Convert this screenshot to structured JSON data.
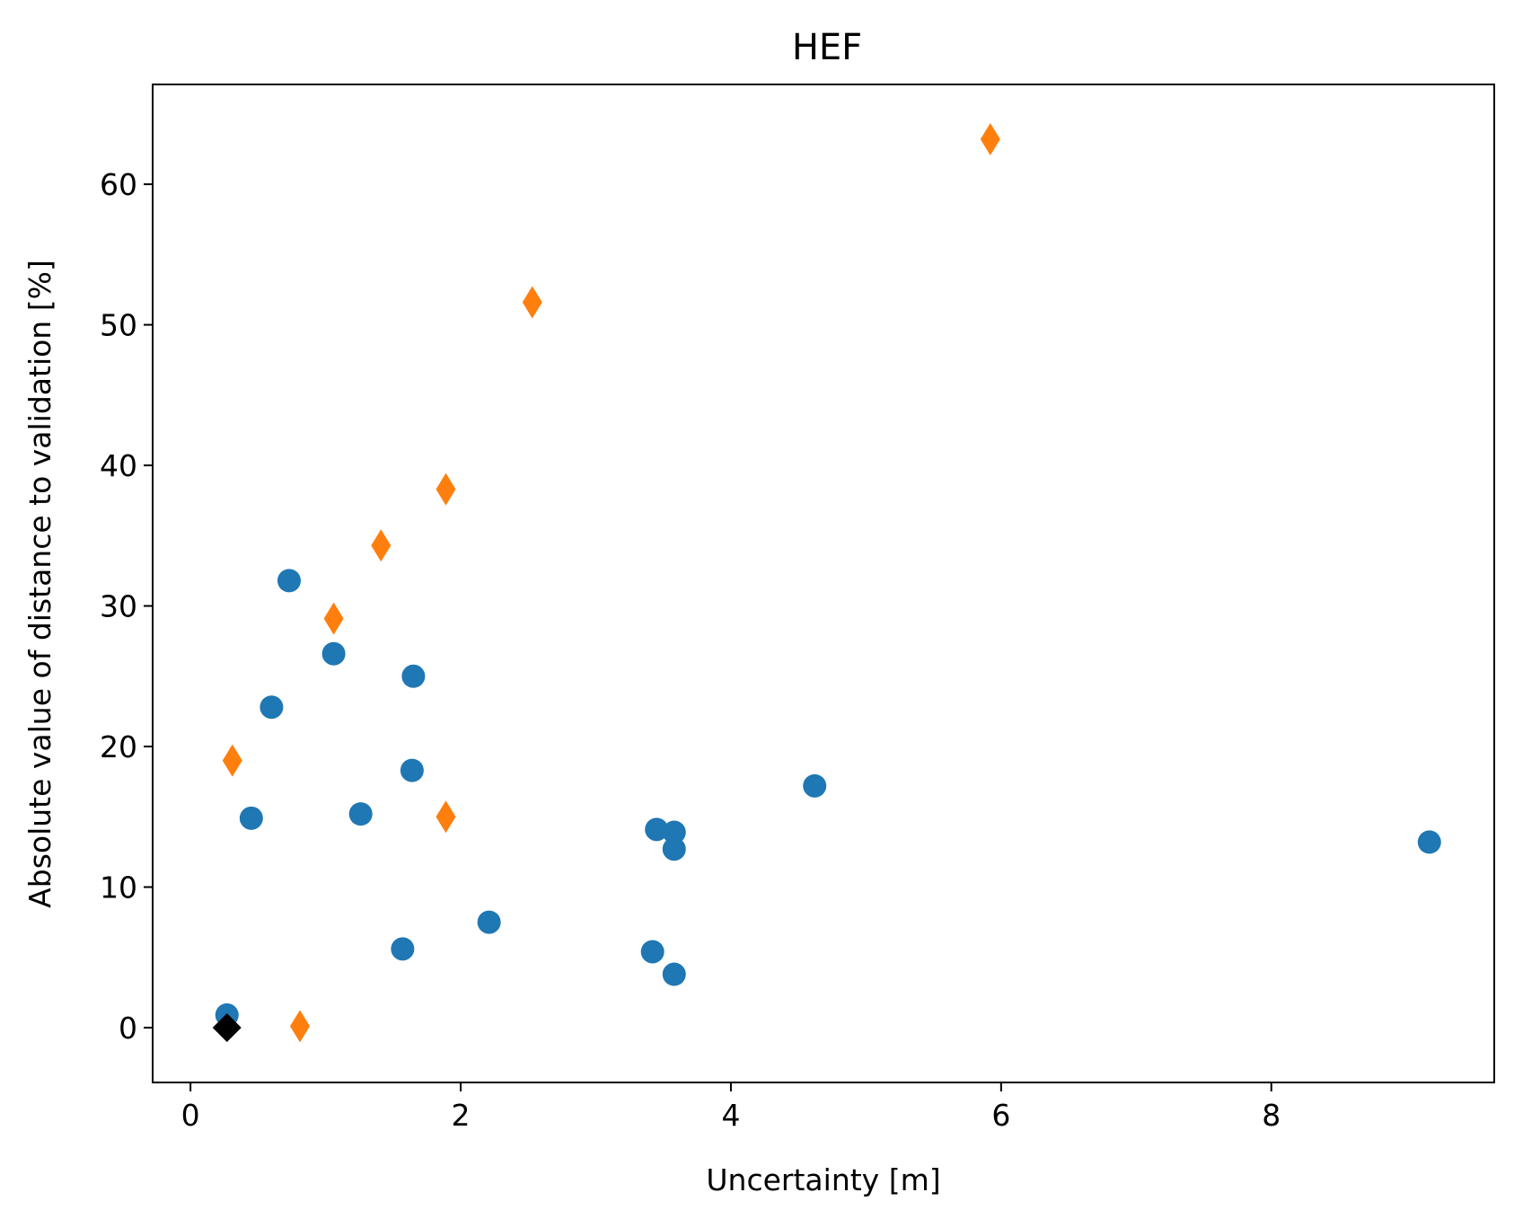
{
  "chart_data": {
    "type": "scatter",
    "title": "HEF",
    "xlabel": "Uncertainty [m]",
    "ylabel": "Absolute value of distance to validation [%]",
    "xlim": [
      -0.28,
      9.65
    ],
    "ylim": [
      -3.9,
      67.1
    ],
    "xticks": [
      0,
      2,
      4,
      6,
      8
    ],
    "yticks": [
      0,
      10,
      20,
      30,
      40,
      50,
      60
    ],
    "grid": false,
    "legend": "none",
    "series": [
      {
        "marker": "circle",
        "color": "#1f77b4",
        "points": [
          {
            "x": 0.27,
            "y": 0.9
          },
          {
            "x": 0.45,
            "y": 14.9
          },
          {
            "x": 0.6,
            "y": 22.8
          },
          {
            "x": 0.73,
            "y": 31.8
          },
          {
            "x": 1.06,
            "y": 26.6
          },
          {
            "x": 1.26,
            "y": 15.2
          },
          {
            "x": 1.57,
            "y": 5.6
          },
          {
            "x": 1.64,
            "y": 18.3
          },
          {
            "x": 1.65,
            "y": 25.0
          },
          {
            "x": 2.21,
            "y": 7.5
          },
          {
            "x": 3.42,
            "y": 5.4
          },
          {
            "x": 3.45,
            "y": 14.1
          },
          {
            "x": 3.58,
            "y": 13.9
          },
          {
            "x": 3.58,
            "y": 12.7
          },
          {
            "x": 3.58,
            "y": 3.8
          },
          {
            "x": 4.62,
            "y": 17.2
          },
          {
            "x": 9.17,
            "y": 13.2
          }
        ]
      },
      {
        "marker": "thin_diamond",
        "color": "#ff7f0e",
        "points": [
          {
            "x": 0.31,
            "y": 19.0
          },
          {
            "x": 0.81,
            "y": 0.1
          },
          {
            "x": 1.06,
            "y": 29.1
          },
          {
            "x": 1.41,
            "y": 34.3
          },
          {
            "x": 1.89,
            "y": 38.3
          },
          {
            "x": 1.89,
            "y": 15.0
          },
          {
            "x": 2.53,
            "y": 51.6
          },
          {
            "x": 5.92,
            "y": 63.2
          }
        ]
      },
      {
        "marker": "diamond",
        "color": "#000000",
        "points": [
          {
            "x": 0.27,
            "y": 0.0
          }
        ]
      }
    ]
  }
}
